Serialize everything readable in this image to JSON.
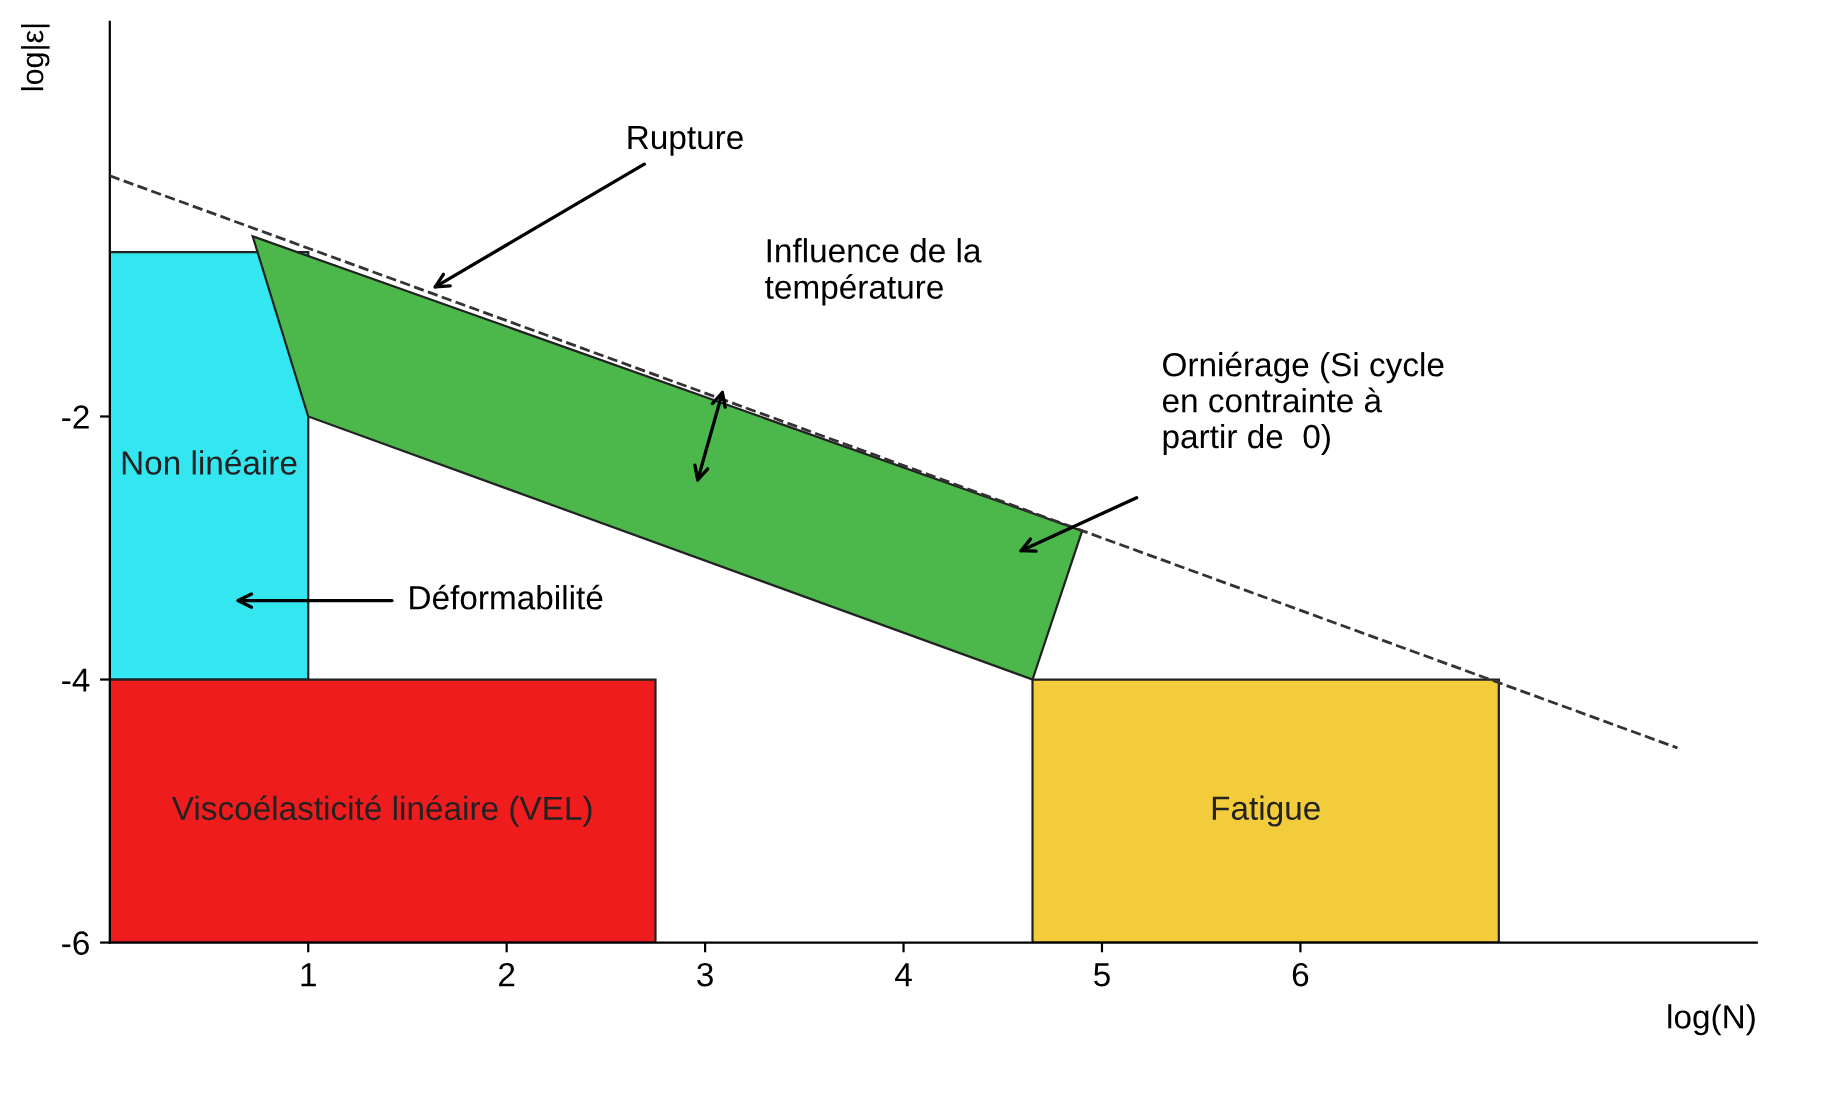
{
  "chart_data": {
    "type": "area",
    "xlabel": "log(N)",
    "ylabel": "log|ε|",
    "xlim": [
      0,
      8.3
    ],
    "ylim": [
      -6,
      1
    ],
    "xticks": [
      1,
      2,
      3,
      4,
      5,
      6
    ],
    "yticks": [
      -6,
      -4,
      -2
    ],
    "grid": false,
    "legend": false,
    "series": [
      {
        "name": "Non linéaire",
        "color": "#33e6f0",
        "x": [
          0,
          1,
          1,
          0
        ],
        "values": [
          -0.75,
          -0.75,
          -4,
          -4
        ]
      },
      {
        "name": "Viscoélasticité linéaire (VEL)",
        "color": "#ee1c1c",
        "x": [
          0,
          2.75,
          2.75,
          0
        ],
        "values": [
          -4,
          -4,
          -6,
          -6
        ]
      },
      {
        "name": "Fatigue",
        "color": "#f2cc3a",
        "x": [
          4.65,
          7.0,
          7.0,
          4.65
        ],
        "values": [
          -4,
          -4,
          -6,
          -6
        ]
      },
      {
        "color": "#4cb84c",
        "x": [
          0.72,
          4.9,
          4.65,
          1
        ],
        "values": [
          -0.63,
          -2.87,
          -4,
          -2
        ]
      },
      {
        "type": "line",
        "color": "#333333",
        "line_style": "dashed",
        "x": [
          0,
          7.9
        ],
        "values": [
          -0.17,
          -4.52
        ]
      }
    ],
    "annotations": [
      {
        "text": "Rupture",
        "x": 1.6,
        "y": -1.05
      },
      "Influence de la\ntempérature",
      "Orniérage (Si cycle\nen contrainte à\npartir de  0)",
      "Déformabilité"
    ]
  }
}
